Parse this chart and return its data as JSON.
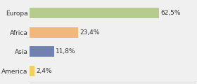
{
  "categories": [
    "Europa",
    "Africa",
    "Asia",
    "America"
  ],
  "values": [
    62.5,
    23.4,
    11.8,
    2.4
  ],
  "labels": [
    "62,5%",
    "23,4%",
    "11,8%",
    "2,4%"
  ],
  "bar_colors": [
    "#b5cc8e",
    "#f0b87a",
    "#7080b0",
    "#f0d060"
  ],
  "background_color": "#f0f0f0",
  "xlim": [
    0,
    80
  ],
  "label_fontsize": 6.5,
  "category_fontsize": 6.5,
  "bar_height": 0.55
}
